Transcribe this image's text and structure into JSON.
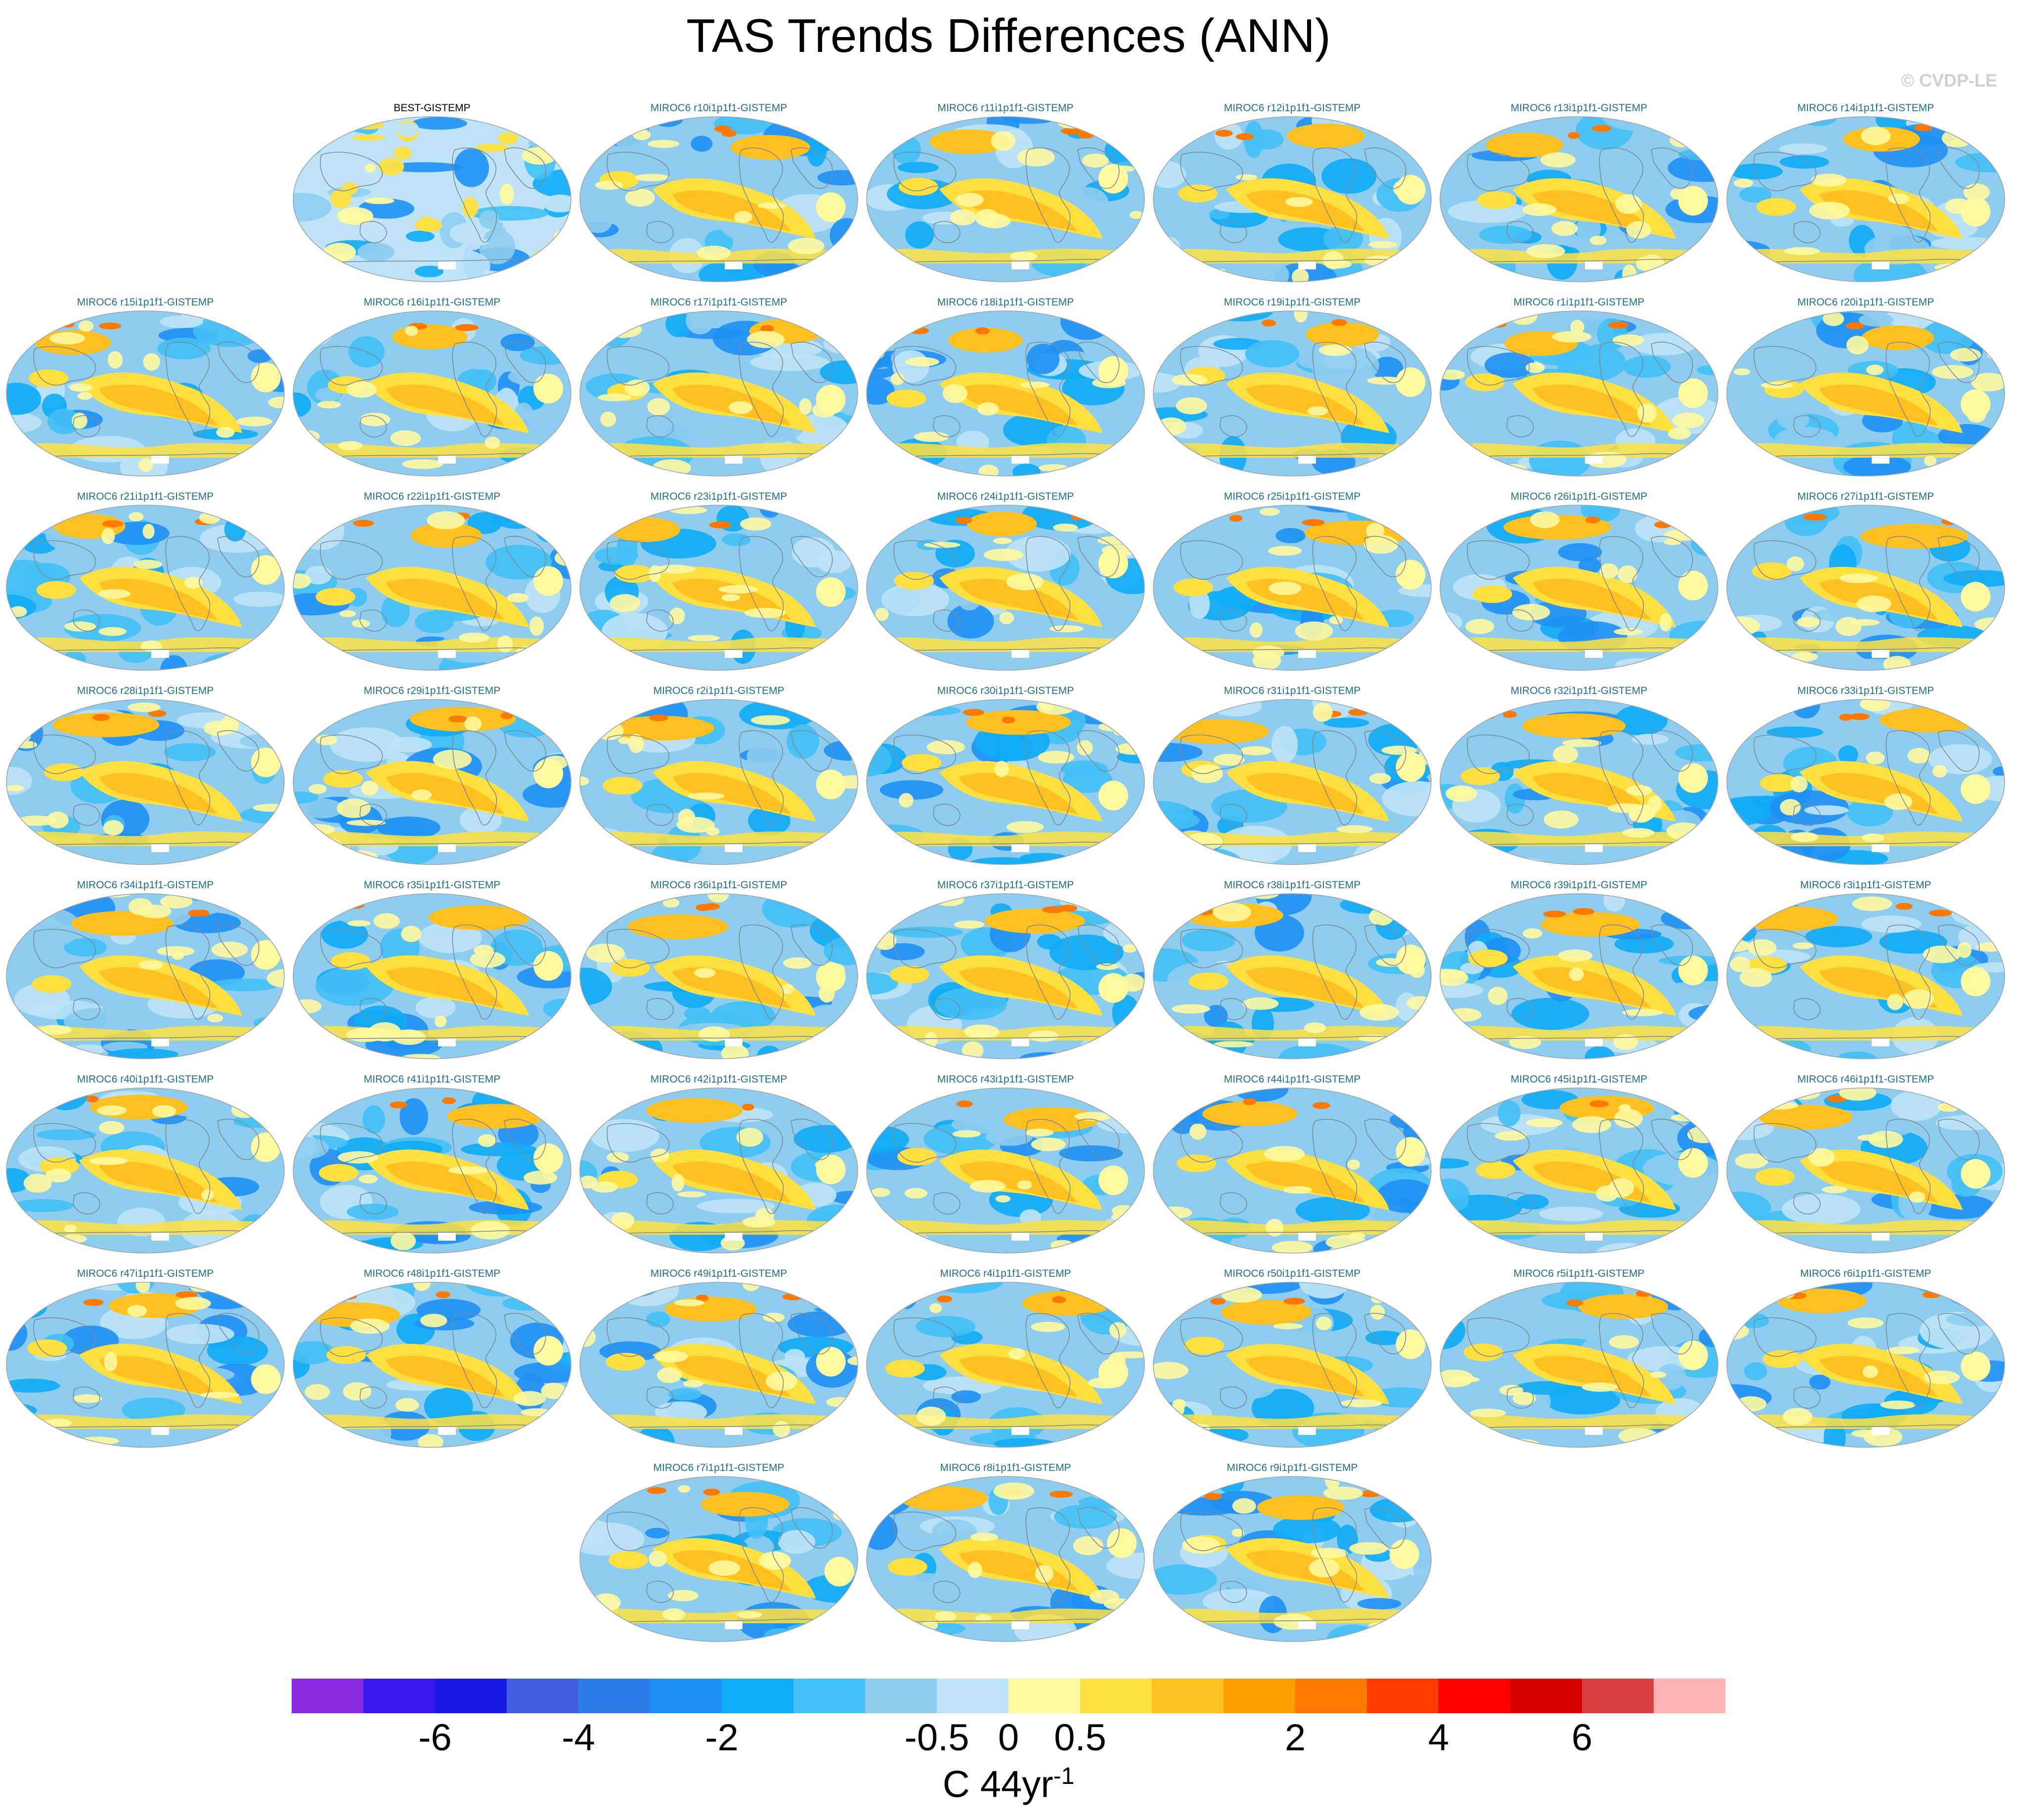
{
  "title": "TAS Trends Differences (ANN)",
  "credit": "© CVDP-LE",
  "units": {
    "base": "C 44yr",
    "exponent": "-1"
  },
  "colorbar": {
    "colors": [
      "#8a2be2",
      "#3a16f0",
      "#1a1ae6",
      "#3f5fe0",
      "#2e7ce8",
      "#1e90f5",
      "#0fabf5",
      "#43c0f5",
      "#8ecdf0",
      "#bfe4f7",
      "#fffaa0",
      "#ffe040",
      "#ffc020",
      "#ffa000",
      "#ff7800",
      "#ff3c00",
      "#ff0000",
      "#d80000",
      "#d84040",
      "#ffb4b4"
    ],
    "tick_labels": [
      "-6",
      "-4",
      "-2",
      "-0.5",
      "0",
      "0.5",
      "2",
      "4",
      "6"
    ],
    "tick_boundaries": [
      2,
      4,
      6,
      9,
      10,
      11,
      14,
      16,
      18
    ]
  },
  "panels": [
    {
      "title": "BEST-GISTEMP",
      "row": 0,
      "col": 1,
      "obs": true
    },
    {
      "title": "MIROC6 r10i1p1f1-GISTEMP",
      "row": 0,
      "col": 2
    },
    {
      "title": "MIROC6 r11i1p1f1-GISTEMP",
      "row": 0,
      "col": 3
    },
    {
      "title": "MIROC6 r12i1p1f1-GISTEMP",
      "row": 0,
      "col": 4
    },
    {
      "title": "MIROC6 r13i1p1f1-GISTEMP",
      "row": 0,
      "col": 5
    },
    {
      "title": "MIROC6 r14i1p1f1-GISTEMP",
      "row": 0,
      "col": 6
    },
    {
      "title": "MIROC6 r15i1p1f1-GISTEMP",
      "row": 1,
      "col": 0
    },
    {
      "title": "MIROC6 r16i1p1f1-GISTEMP",
      "row": 1,
      "col": 1
    },
    {
      "title": "MIROC6 r17i1p1f1-GISTEMP",
      "row": 1,
      "col": 2
    },
    {
      "title": "MIROC6 r18i1p1f1-GISTEMP",
      "row": 1,
      "col": 3
    },
    {
      "title": "MIROC6 r19i1p1f1-GISTEMP",
      "row": 1,
      "col": 4
    },
    {
      "title": "MIROC6 r1i1p1f1-GISTEMP",
      "row": 1,
      "col": 5
    },
    {
      "title": "MIROC6 r20i1p1f1-GISTEMP",
      "row": 1,
      "col": 6
    },
    {
      "title": "MIROC6 r21i1p1f1-GISTEMP",
      "row": 2,
      "col": 0
    },
    {
      "title": "MIROC6 r22i1p1f1-GISTEMP",
      "row": 2,
      "col": 1
    },
    {
      "title": "MIROC6 r23i1p1f1-GISTEMP",
      "row": 2,
      "col": 2
    },
    {
      "title": "MIROC6 r24i1p1f1-GISTEMP",
      "row": 2,
      "col": 3
    },
    {
      "title": "MIROC6 r25i1p1f1-GISTEMP",
      "row": 2,
      "col": 4
    },
    {
      "title": "MIROC6 r26i1p1f1-GISTEMP",
      "row": 2,
      "col": 5
    },
    {
      "title": "MIROC6 r27i1p1f1-GISTEMP",
      "row": 2,
      "col": 6
    },
    {
      "title": "MIROC6 r28i1p1f1-GISTEMP",
      "row": 3,
      "col": 0
    },
    {
      "title": "MIROC6 r29i1p1f1-GISTEMP",
      "row": 3,
      "col": 1
    },
    {
      "title": "MIROC6 r2i1p1f1-GISTEMP",
      "row": 3,
      "col": 2
    },
    {
      "title": "MIROC6 r30i1p1f1-GISTEMP",
      "row": 3,
      "col": 3
    },
    {
      "title": "MIROC6 r31i1p1f1-GISTEMP",
      "row": 3,
      "col": 4
    },
    {
      "title": "MIROC6 r32i1p1f1-GISTEMP",
      "row": 3,
      "col": 5
    },
    {
      "title": "MIROC6 r33i1p1f1-GISTEMP",
      "row": 3,
      "col": 6
    },
    {
      "title": "MIROC6 r34i1p1f1-GISTEMP",
      "row": 4,
      "col": 0
    },
    {
      "title": "MIROC6 r35i1p1f1-GISTEMP",
      "row": 4,
      "col": 1
    },
    {
      "title": "MIROC6 r36i1p1f1-GISTEMP",
      "row": 4,
      "col": 2
    },
    {
      "title": "MIROC6 r37i1p1f1-GISTEMP",
      "row": 4,
      "col": 3
    },
    {
      "title": "MIROC6 r38i1p1f1-GISTEMP",
      "row": 4,
      "col": 4
    },
    {
      "title": "MIROC6 r39i1p1f1-GISTEMP",
      "row": 4,
      "col": 5
    },
    {
      "title": "MIROC6 r3i1p1f1-GISTEMP",
      "row": 4,
      "col": 6
    },
    {
      "title": "MIROC6 r40i1p1f1-GISTEMP",
      "row": 5,
      "col": 0
    },
    {
      "title": "MIROC6 r41i1p1f1-GISTEMP",
      "row": 5,
      "col": 1
    },
    {
      "title": "MIROC6 r42i1p1f1-GISTEMP",
      "row": 5,
      "col": 2
    },
    {
      "title": "MIROC6 r43i1p1f1-GISTEMP",
      "row": 5,
      "col": 3
    },
    {
      "title": "MIROC6 r44i1p1f1-GISTEMP",
      "row": 5,
      "col": 4
    },
    {
      "title": "MIROC6 r45i1p1f1-GISTEMP",
      "row": 5,
      "col": 5
    },
    {
      "title": "MIROC6 r46i1p1f1-GISTEMP",
      "row": 5,
      "col": 6
    },
    {
      "title": "MIROC6 r47i1p1f1-GISTEMP",
      "row": 6,
      "col": 0
    },
    {
      "title": "MIROC6 r48i1p1f1-GISTEMP",
      "row": 6,
      "col": 1
    },
    {
      "title": "MIROC6 r49i1p1f1-GISTEMP",
      "row": 6,
      "col": 2
    },
    {
      "title": "MIROC6 r4i1p1f1-GISTEMP",
      "row": 6,
      "col": 3
    },
    {
      "title": "MIROC6 r50i1p1f1-GISTEMP",
      "row": 6,
      "col": 4
    },
    {
      "title": "MIROC6 r5i1p1f1-GISTEMP",
      "row": 6,
      "col": 5
    },
    {
      "title": "MIROC6 r6i1p1f1-GISTEMP",
      "row": 6,
      "col": 6
    },
    {
      "title": "MIROC6 r7i1p1f1-GISTEMP",
      "row": 7,
      "col": 2
    },
    {
      "title": "MIROC6 r8i1p1f1-GISTEMP",
      "row": 7,
      "col": 3
    },
    {
      "title": "MIROC6 r9i1p1f1-GISTEMP",
      "row": 7,
      "col": 4
    }
  ]
}
